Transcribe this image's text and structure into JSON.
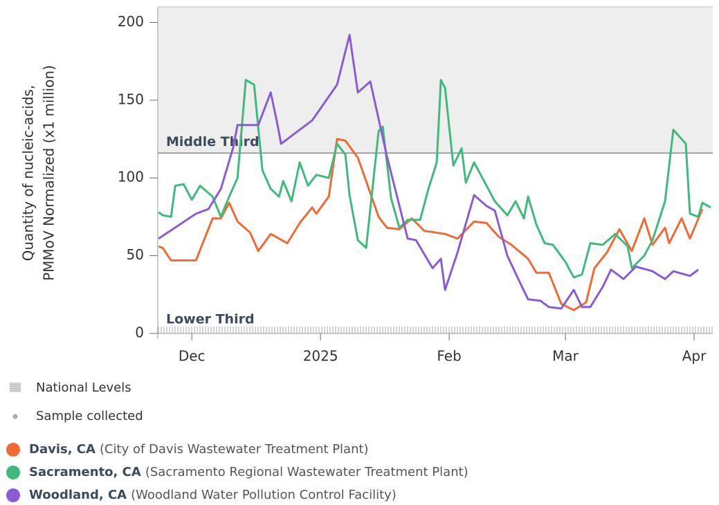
{
  "chart_data": {
    "type": "line",
    "y_label": [
      "Quantity of nucleic-acids,",
      "PMMoV Normalized (x1 million)"
    ],
    "ylim": [
      0,
      210
    ],
    "yticks": [
      0,
      50,
      100,
      150,
      200
    ],
    "xlim": [
      -39.2,
      94.5
    ],
    "xticks": [
      {
        "value": -31,
        "label": "Dec"
      },
      {
        "value": 0,
        "label": "2025"
      },
      {
        "value": 31,
        "label": "Feb"
      },
      {
        "value": 59,
        "label": "Mar"
      },
      {
        "value": 90,
        "label": "Apr"
      }
    ],
    "bands": [
      {
        "label": "Middle Third",
        "value": 116
      },
      {
        "label": "Lower Third",
        "value": 0
      }
    ],
    "legend_extra": [
      "National Levels",
      "Sample collected"
    ],
    "series": [
      {
        "name": "Davis, CA",
        "facility": "(City of Davis Wastewater Treatment Plant)",
        "color": "#f06a35",
        "x": [
          -39,
          -38,
          -36,
          -30,
          -26,
          -24,
          -22,
          -20,
          -17,
          -15,
          -12,
          -8,
          -5,
          -2,
          -1,
          2,
          4,
          6,
          9,
          11,
          14,
          16,
          19,
          22,
          25,
          30,
          33,
          37,
          40,
          43,
          46,
          50,
          52,
          55,
          58,
          61,
          64,
          66,
          69,
          72,
          75,
          78,
          80,
          83,
          84,
          87,
          89,
          92
        ],
        "values": [
          56,
          55,
          47,
          47,
          74,
          74,
          84,
          72,
          65,
          53,
          64,
          58,
          71,
          81,
          77,
          88,
          125,
          124,
          113,
          98,
          75,
          68,
          67,
          74,
          66,
          64,
          61,
          72,
          71,
          62,
          57,
          48,
          39,
          39,
          19,
          15,
          20,
          42,
          52,
          67,
          53,
          74,
          57,
          68,
          58,
          74,
          61,
          80
        ]
      },
      {
        "name": "Sacramento, CA",
        "facility": "(Sacramento Regional Wastewater Treatment Plant)",
        "color": "#3fba7c",
        "x": [
          -39,
          -38,
          -36,
          -35,
          -33,
          -31,
          -29,
          -26,
          -24,
          -22,
          -20,
          -18,
          -16,
          -14,
          -12,
          -10,
          -9,
          -7,
          -5,
          -3,
          -1,
          2,
          4,
          6,
          7,
          9,
          11,
          14,
          15,
          17,
          19,
          21,
          24,
          26,
          28,
          29,
          30,
          32,
          34,
          35,
          37,
          40,
          42,
          45,
          47,
          49,
          50,
          52,
          54,
          56,
          59,
          61,
          63,
          65,
          68,
          71,
          74,
          75,
          78,
          80,
          83,
          85,
          88,
          89,
          91,
          92,
          94
        ],
        "values": [
          78,
          76,
          75,
          95,
          96,
          86,
          95,
          88,
          75,
          88,
          100,
          163,
          160,
          105,
          93,
          88,
          98,
          85,
          110,
          95,
          102,
          100,
          122,
          115,
          89,
          60,
          55,
          130,
          133,
          87,
          68,
          73,
          73,
          93,
          110,
          163,
          158,
          108,
          119,
          97,
          110,
          95,
          85,
          76,
          85,
          74,
          88,
          70,
          58,
          57,
          46,
          36,
          38,
          58,
          57,
          64,
          56,
          42,
          50,
          60,
          85,
          131,
          122,
          77,
          75,
          84,
          81
        ]
      },
      {
        "name": "Woodland, CA",
        "facility": "(Woodland Water Pollution Control Facility)",
        "color": "#8b5bd6",
        "x": [
          -39,
          -30,
          -27,
          -24,
          -21,
          -20,
          -15,
          -12,
          -10.5,
          -9.5,
          -2,
          4,
          7,
          9,
          12,
          16,
          21,
          23,
          27,
          29,
          30,
          33,
          37,
          40,
          42,
          45,
          48,
          50,
          53,
          55,
          58,
          61,
          63,
          65,
          68,
          70,
          73,
          76,
          80,
          83,
          85,
          89,
          91
        ],
        "values": [
          61,
          77,
          80,
          93,
          120,
          134,
          134,
          155,
          136,
          122,
          137,
          160,
          192,
          155,
          162,
          114,
          61,
          60,
          42,
          48,
          28,
          52,
          89,
          82,
          79,
          50,
          33,
          22,
          21,
          17,
          16,
          28,
          17,
          17,
          30,
          41,
          35,
          43,
          40,
          35,
          40,
          37,
          41
        ]
      }
    ]
  }
}
